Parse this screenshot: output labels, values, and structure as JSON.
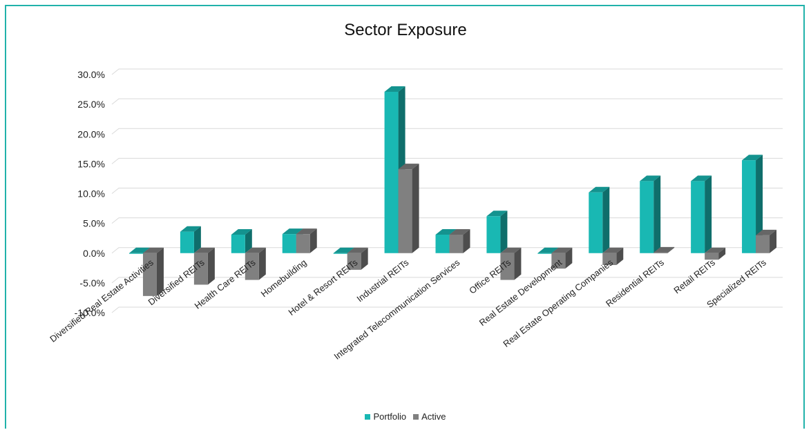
{
  "chart_data": {
    "type": "bar",
    "title": "Sector Exposure",
    "categories": [
      "Diversified Real Estate Activities",
      "Diversified REITs",
      "Health Care REITs",
      "Homebuilding",
      "Hotel & Resort REITs",
      "Industrial REITs",
      "Integrated Telecommunication Services",
      "Office REITs",
      "Real Estate Development",
      "Real Estate Operating Companies",
      "Residential REITs",
      "Retail REITs",
      "Specialized REITs"
    ],
    "series": [
      {
        "name": "Portfolio",
        "color": "#19b8b3",
        "values": [
          0.0,
          3.6,
          3.1,
          3.2,
          0.0,
          27.1,
          3.1,
          6.2,
          0.0,
          10.2,
          12.1,
          12.1,
          15.6
        ]
      },
      {
        "name": "Active",
        "color": "#808080",
        "values": [
          -7.2,
          -5.3,
          -4.5,
          3.2,
          -2.8,
          14.1,
          3.1,
          -4.5,
          -2.6,
          -2.0,
          0.1,
          -1.1,
          3.0
        ]
      }
    ],
    "ylim": [
      -10,
      30
    ],
    "yticks": [
      30,
      25,
      20,
      15,
      10,
      5,
      0,
      -5,
      -10
    ],
    "ytick_labels": [
      "30.0%",
      "25.0%",
      "20.0%",
      "15.0%",
      "10.0%",
      "5.0%",
      "0.0%",
      "-5.0%",
      "-10.0%"
    ],
    "grid": true,
    "legend_position": "bottom"
  }
}
